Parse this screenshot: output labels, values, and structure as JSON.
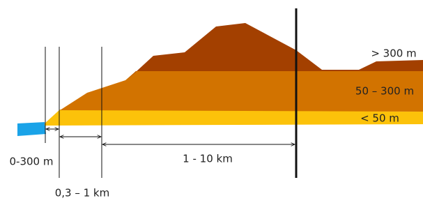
{
  "labels": {
    "zone_a": "0-300 m",
    "zone_b": "0,3 – 1 km",
    "zone_c": "1 - 10 km"
  },
  "layers": {
    "top": "> 300 m",
    "middle": "50 – 300 m",
    "bottom": "< 50 m"
  }
}
